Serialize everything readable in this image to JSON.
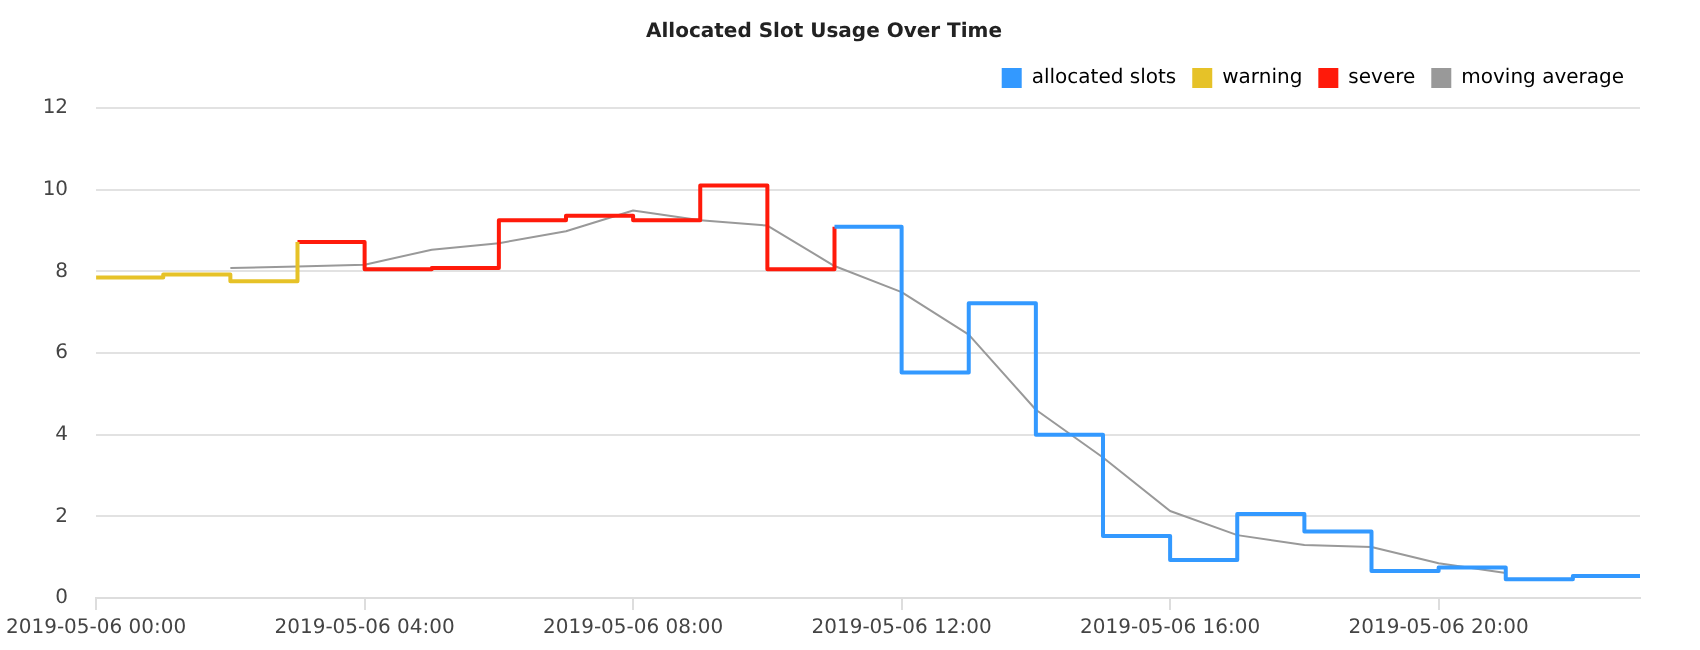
{
  "chart_data": {
    "type": "step",
    "title": "Allocated Slot Usage Over Time",
    "series": [
      {
        "name": "allocated slots",
        "type": "step",
        "color": "#3399ff",
        "x": [
          "2019-05-06T11:00",
          "2019-05-06T12:00",
          "2019-05-06T13:00",
          "2019-05-06T14:00",
          "2019-05-06T15:00",
          "2019-05-06T16:00",
          "2019-05-06T17:00",
          "2019-05-06T18:00",
          "2019-05-06T19:00",
          "2019-05-06T20:00",
          "2019-05-06T21:00",
          "2019-05-06T22:00",
          "2019-05-06T23:00"
        ],
        "values": [
          9.09,
          5.52,
          7.22,
          4.0,
          1.52,
          0.93,
          2.06,
          1.63,
          0.66,
          0.75,
          0.46,
          0.54,
          0.5
        ]
      },
      {
        "name": "warning",
        "type": "step",
        "color": "#e6c228",
        "x": [
          "2019-05-06T00:00",
          "2019-05-06T01:00",
          "2019-05-06T02:00",
          "2019-05-06T03:00"
        ],
        "values": [
          7.85,
          7.92,
          7.76,
          8.72
        ]
      },
      {
        "name": "severe",
        "type": "step",
        "color": "#ff1a0a",
        "x": [
          "2019-05-06T03:00",
          "2019-05-06T04:00",
          "2019-05-06T05:00",
          "2019-05-06T06:00",
          "2019-05-06T07:00",
          "2019-05-06T08:00",
          "2019-05-06T09:00",
          "2019-05-06T10:00",
          "2019-05-06T11:00"
        ],
        "values": [
          8.72,
          8.05,
          8.08,
          9.25,
          9.36,
          9.25,
          10.1,
          8.05,
          9.09
        ]
      },
      {
        "name": "moving average",
        "type": "line",
        "color": "#999999",
        "x": [
          "2019-05-06T02:00",
          "2019-05-06T03:00",
          "2019-05-06T04:00",
          "2019-05-06T05:00",
          "2019-05-06T06:00",
          "2019-05-06T07:00",
          "2019-05-06T08:00",
          "2019-05-06T09:00",
          "2019-05-06T10:00",
          "2019-05-06T11:00",
          "2019-05-06T12:00",
          "2019-05-06T13:00",
          "2019-05-06T14:00",
          "2019-05-06T15:00",
          "2019-05-06T16:00",
          "2019-05-06T17:00",
          "2019-05-06T18:00",
          "2019-05-06T19:00",
          "2019-05-06T20:00",
          "2019-05-06T21:00"
        ],
        "values": [
          8.08,
          8.12,
          8.16,
          8.53,
          8.69,
          8.98,
          9.49,
          9.25,
          9.12,
          8.13,
          7.49,
          6.45,
          4.61,
          3.44,
          2.13,
          1.54,
          1.3,
          1.25,
          0.85,
          0.61
        ]
      }
    ],
    "xlim": [
      "2019-05-06T00:00",
      "2019-05-06T23:00"
    ],
    "xticks": [
      {
        "value": "2019-05-06T00:00",
        "label": "2019-05-06 00:00"
      },
      {
        "value": "2019-05-06T04:00",
        "label": "2019-05-06 04:00"
      },
      {
        "value": "2019-05-06T08:00",
        "label": "2019-05-06 08:00"
      },
      {
        "value": "2019-05-06T12:00",
        "label": "2019-05-06 12:00"
      },
      {
        "value": "2019-05-06T16:00",
        "label": "2019-05-06 16:00"
      },
      {
        "value": "2019-05-06T20:00",
        "label": "2019-05-06 20:00"
      }
    ],
    "ylim": [
      0,
      12
    ],
    "yticks": [
      0,
      2,
      4,
      6,
      8,
      10,
      12
    ],
    "grid": "y",
    "legend": "top right",
    "marker": "none",
    "line_style": "solid"
  }
}
